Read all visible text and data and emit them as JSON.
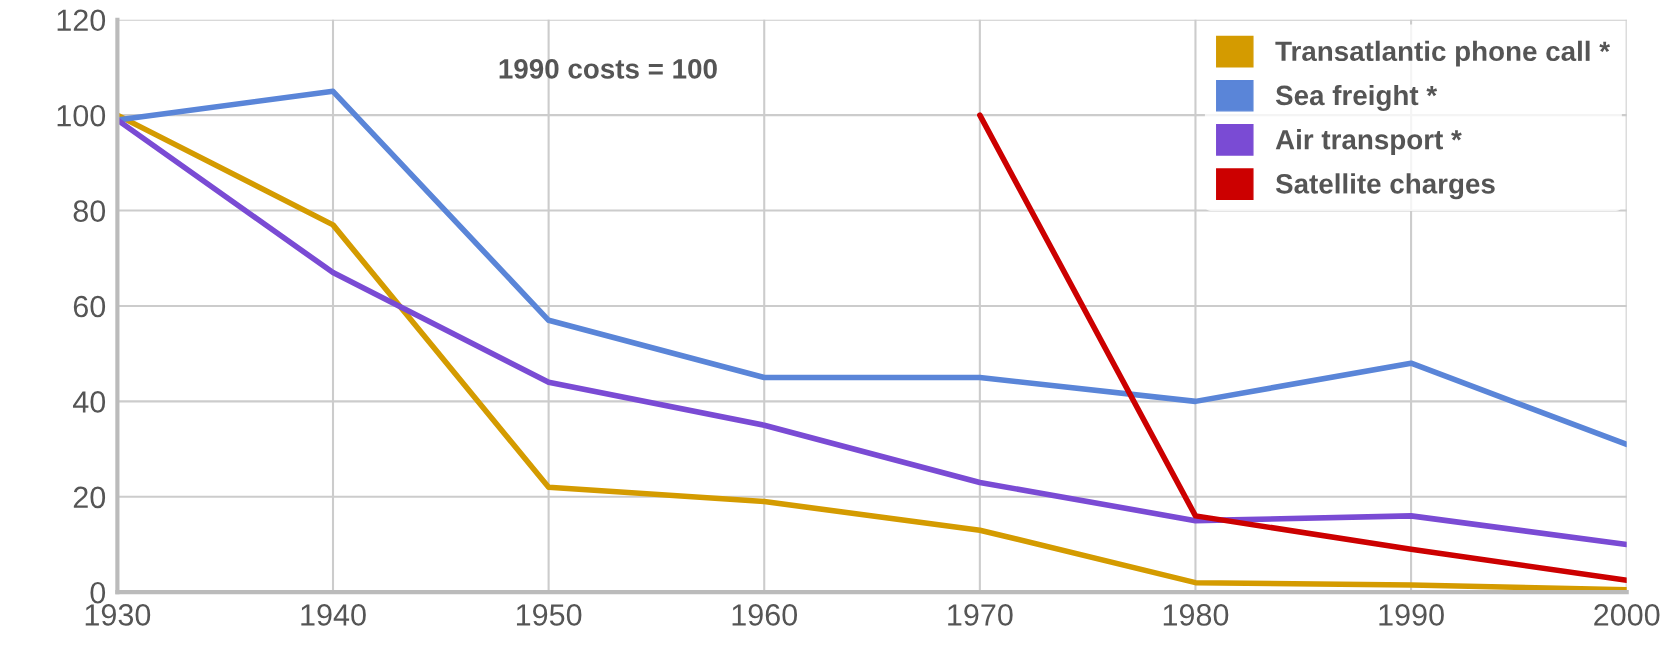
{
  "chart_data": {
    "type": "line",
    "x": [
      1930,
      1940,
      1950,
      1960,
      1970,
      1980,
      1990,
      2000
    ],
    "series": [
      {
        "name": "Transatlantic phone call *",
        "color": "#d49b00",
        "values": [
          100,
          77,
          22,
          19,
          13,
          2,
          1.5,
          0.5
        ]
      },
      {
        "name": "Sea freight *",
        "color": "#5a85d8",
        "values": [
          99,
          105,
          57,
          45,
          45,
          40,
          48,
          31
        ]
      },
      {
        "name": "Air transport *",
        "color": "#7a4bd4",
        "values": [
          99,
          67,
          44,
          35,
          23,
          15,
          16,
          10
        ]
      },
      {
        "name": "Satellite charges",
        "color": "#cc0000",
        "values": [
          null,
          null,
          null,
          null,
          100,
          16,
          9,
          2.5
        ]
      }
    ],
    "annotations": [
      "1990 costs = 100"
    ],
    "xlim": [
      1930,
      2000
    ],
    "xticks": [
      1930,
      1940,
      1950,
      1960,
      1970,
      1980,
      1990,
      2000
    ],
    "ylim": [
      0,
      120
    ],
    "yticks": [
      0,
      20,
      40,
      60,
      80,
      100,
      120
    ],
    "grid": true,
    "legend": "top right",
    "marker": "none",
    "line_style": "solid"
  }
}
